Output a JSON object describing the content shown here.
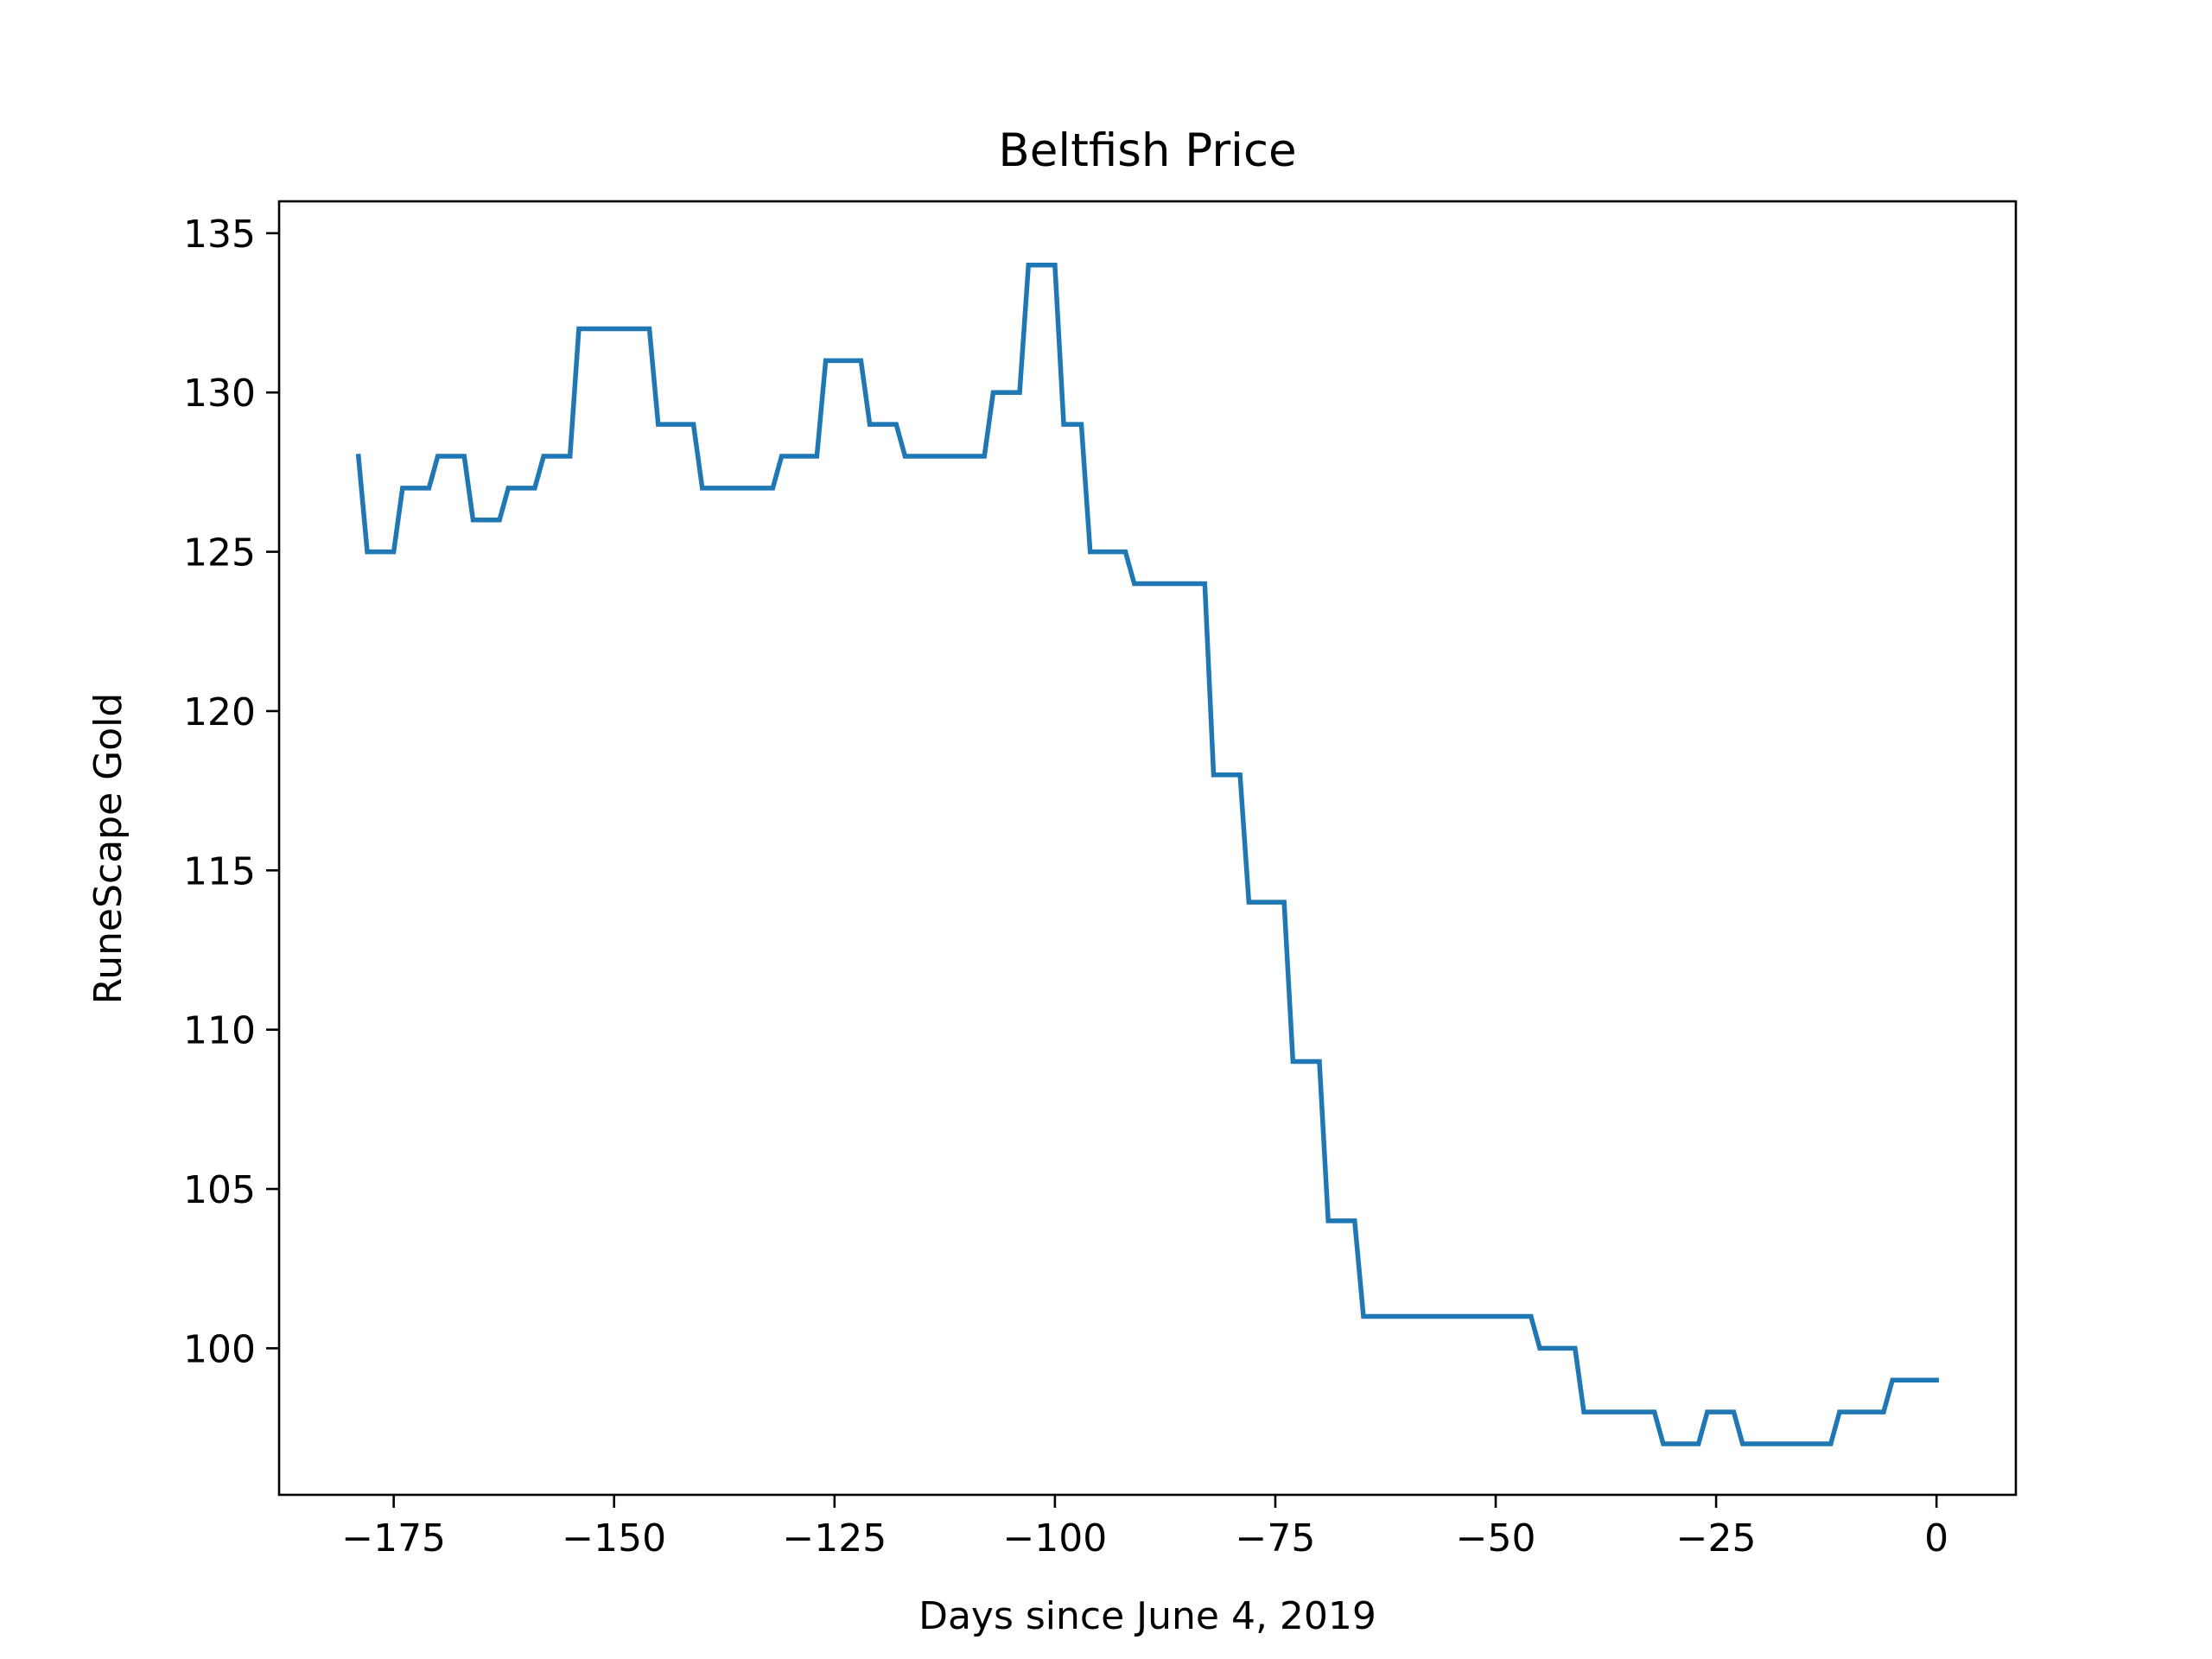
{
  "chart_data": {
    "type": "line",
    "title": "Beltfish Price",
    "xlabel": "Days since June 4, 2019",
    "ylabel": "RuneScape Gold",
    "xlim": [
      -188,
      9
    ],
    "ylim": [
      95.4,
      136
    ],
    "grid": false,
    "x_ticks": [
      -175,
      -150,
      -125,
      -100,
      -75,
      -50,
      -25,
      0
    ],
    "x_tick_labels": [
      "−175",
      "−150",
      "−125",
      "−100",
      "−75",
      "−50",
      "−25",
      "0"
    ],
    "y_ticks": [
      100,
      105,
      110,
      115,
      120,
      125,
      130,
      135
    ],
    "y_tick_labels": [
      "100",
      "105",
      "110",
      "115",
      "120",
      "125",
      "130",
      "135"
    ],
    "series": [
      {
        "color": "#1f77b4",
        "points": [
          [
            -179,
            128
          ],
          [
            -178,
            125
          ],
          [
            -175,
            125
          ],
          [
            -174,
            127
          ],
          [
            -171,
            127
          ],
          [
            -170,
            128
          ],
          [
            -167,
            128
          ],
          [
            -166,
            126
          ],
          [
            -163,
            126
          ],
          [
            -162,
            127
          ],
          [
            -159,
            127
          ],
          [
            -158,
            128
          ],
          [
            -155,
            128
          ],
          [
            -154,
            132
          ],
          [
            -146,
            132
          ],
          [
            -145,
            129
          ],
          [
            -141,
            129
          ],
          [
            -140,
            127
          ],
          [
            -132,
            127
          ],
          [
            -131,
            128
          ],
          [
            -127,
            128
          ],
          [
            -126,
            131
          ],
          [
            -122,
            131
          ],
          [
            -121,
            129
          ],
          [
            -118,
            129
          ],
          [
            -117,
            128
          ],
          [
            -108,
            128
          ],
          [
            -107,
            130
          ],
          [
            -104,
            130
          ],
          [
            -103,
            134
          ],
          [
            -100,
            134
          ],
          [
            -99,
            129
          ],
          [
            -97,
            129
          ],
          [
            -96,
            125
          ],
          [
            -92,
            125
          ],
          [
            -91,
            124
          ],
          [
            -83,
            124
          ],
          [
            -82,
            118
          ],
          [
            -79,
            118
          ],
          [
            -78,
            114
          ],
          [
            -74,
            114
          ],
          [
            -73,
            109
          ],
          [
            -70,
            109
          ],
          [
            -69,
            104
          ],
          [
            -66,
            104
          ],
          [
            -65,
            101
          ],
          [
            -46,
            101
          ],
          [
            -45,
            100
          ],
          [
            -41,
            100
          ],
          [
            -40,
            98
          ],
          [
            -32,
            98
          ],
          [
            -31,
            97
          ],
          [
            -27,
            97
          ],
          [
            -26,
            98
          ],
          [
            -23,
            98
          ],
          [
            -22,
            97
          ],
          [
            -12,
            97
          ],
          [
            -11,
            98
          ],
          [
            -6,
            98
          ],
          [
            -5,
            99
          ],
          [
            0,
            99
          ]
        ]
      }
    ]
  }
}
